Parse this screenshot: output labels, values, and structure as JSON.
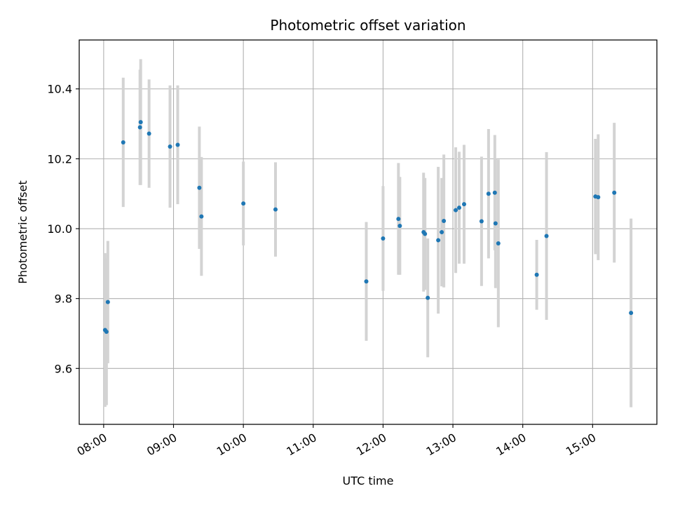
{
  "chart_data": {
    "type": "scatter",
    "title": "Photometric offset variation",
    "xlabel": "UTC time",
    "ylabel": "Photometric offset",
    "x_unit": "hours (UTC)",
    "xlim": [
      7.65,
      15.92
    ],
    "ylim": [
      9.44,
      10.54
    ],
    "x_ticks": [
      8,
      9,
      10,
      11,
      12,
      13,
      14,
      15
    ],
    "x_tick_labels": [
      "08:00",
      "09:00",
      "10:00",
      "11:00",
      "12:00",
      "13:00",
      "14:00",
      "15:00"
    ],
    "y_ticks": [
      9.6,
      9.8,
      10.0,
      10.2,
      10.4
    ],
    "y_tick_labels": [
      "9.6",
      "9.8",
      "10.0",
      "10.2",
      "10.4"
    ],
    "grid": true,
    "point_color": "#1f77b4",
    "errorbar_color": "#d3d3d3",
    "points": [
      {
        "x": 8.02,
        "y": 9.71,
        "err": 0.22
      },
      {
        "x": 8.04,
        "y": 9.705,
        "err": 0.21
      },
      {
        "x": 8.06,
        "y": 9.79,
        "err": 0.175
      },
      {
        "x": 8.28,
        "y": 10.247,
        "err": 0.185
      },
      {
        "x": 8.52,
        "y": 10.29,
        "err": 0.165
      },
      {
        "x": 8.53,
        "y": 10.305,
        "err": 0.18
      },
      {
        "x": 8.65,
        "y": 10.272,
        "err": 0.155
      },
      {
        "x": 8.95,
        "y": 10.235,
        "err": 0.175
      },
      {
        "x": 9.06,
        "y": 10.24,
        "err": 0.17
      },
      {
        "x": 9.37,
        "y": 10.117,
        "err": 0.175
      },
      {
        "x": 9.4,
        "y": 10.035,
        "err": 0.17
      },
      {
        "x": 10.0,
        "y": 10.072,
        "err": 0.12
      },
      {
        "x": 10.46,
        "y": 10.055,
        "err": 0.135
      },
      {
        "x": 11.76,
        "y": 9.849,
        "err": 0.17
      },
      {
        "x": 12.0,
        "y": 9.972,
        "err": 0.15
      },
      {
        "x": 12.22,
        "y": 10.028,
        "err": 0.16
      },
      {
        "x": 12.24,
        "y": 10.008,
        "err": 0.14
      },
      {
        "x": 12.58,
        "y": 9.99,
        "err": 0.17
      },
      {
        "x": 12.6,
        "y": 9.985,
        "err": 0.16
      },
      {
        "x": 12.64,
        "y": 9.802,
        "err": 0.17
      },
      {
        "x": 12.79,
        "y": 9.967,
        "err": 0.21
      },
      {
        "x": 12.84,
        "y": 9.99,
        "err": 0.155
      },
      {
        "x": 12.87,
        "y": 10.022,
        "err": 0.19
      },
      {
        "x": 13.04,
        "y": 10.053,
        "err": 0.18
      },
      {
        "x": 13.09,
        "y": 10.06,
        "err": 0.16
      },
      {
        "x": 13.16,
        "y": 10.07,
        "err": 0.17
      },
      {
        "x": 13.41,
        "y": 10.021,
        "err": 0.185
      },
      {
        "x": 13.51,
        "y": 10.1,
        "err": 0.185
      },
      {
        "x": 13.6,
        "y": 10.103,
        "err": 0.165
      },
      {
        "x": 13.61,
        "y": 10.015,
        "err": 0.185
      },
      {
        "x": 13.65,
        "y": 9.958,
        "err": 0.24
      },
      {
        "x": 14.2,
        "y": 9.868,
        "err": 0.1
      },
      {
        "x": 14.34,
        "y": 9.979,
        "err": 0.24
      },
      {
        "x": 15.04,
        "y": 10.092,
        "err": 0.165
      },
      {
        "x": 15.08,
        "y": 10.09,
        "err": 0.18
      },
      {
        "x": 15.31,
        "y": 10.103,
        "err": 0.2
      },
      {
        "x": 15.55,
        "y": 9.759,
        "err": 0.27
      }
    ]
  }
}
